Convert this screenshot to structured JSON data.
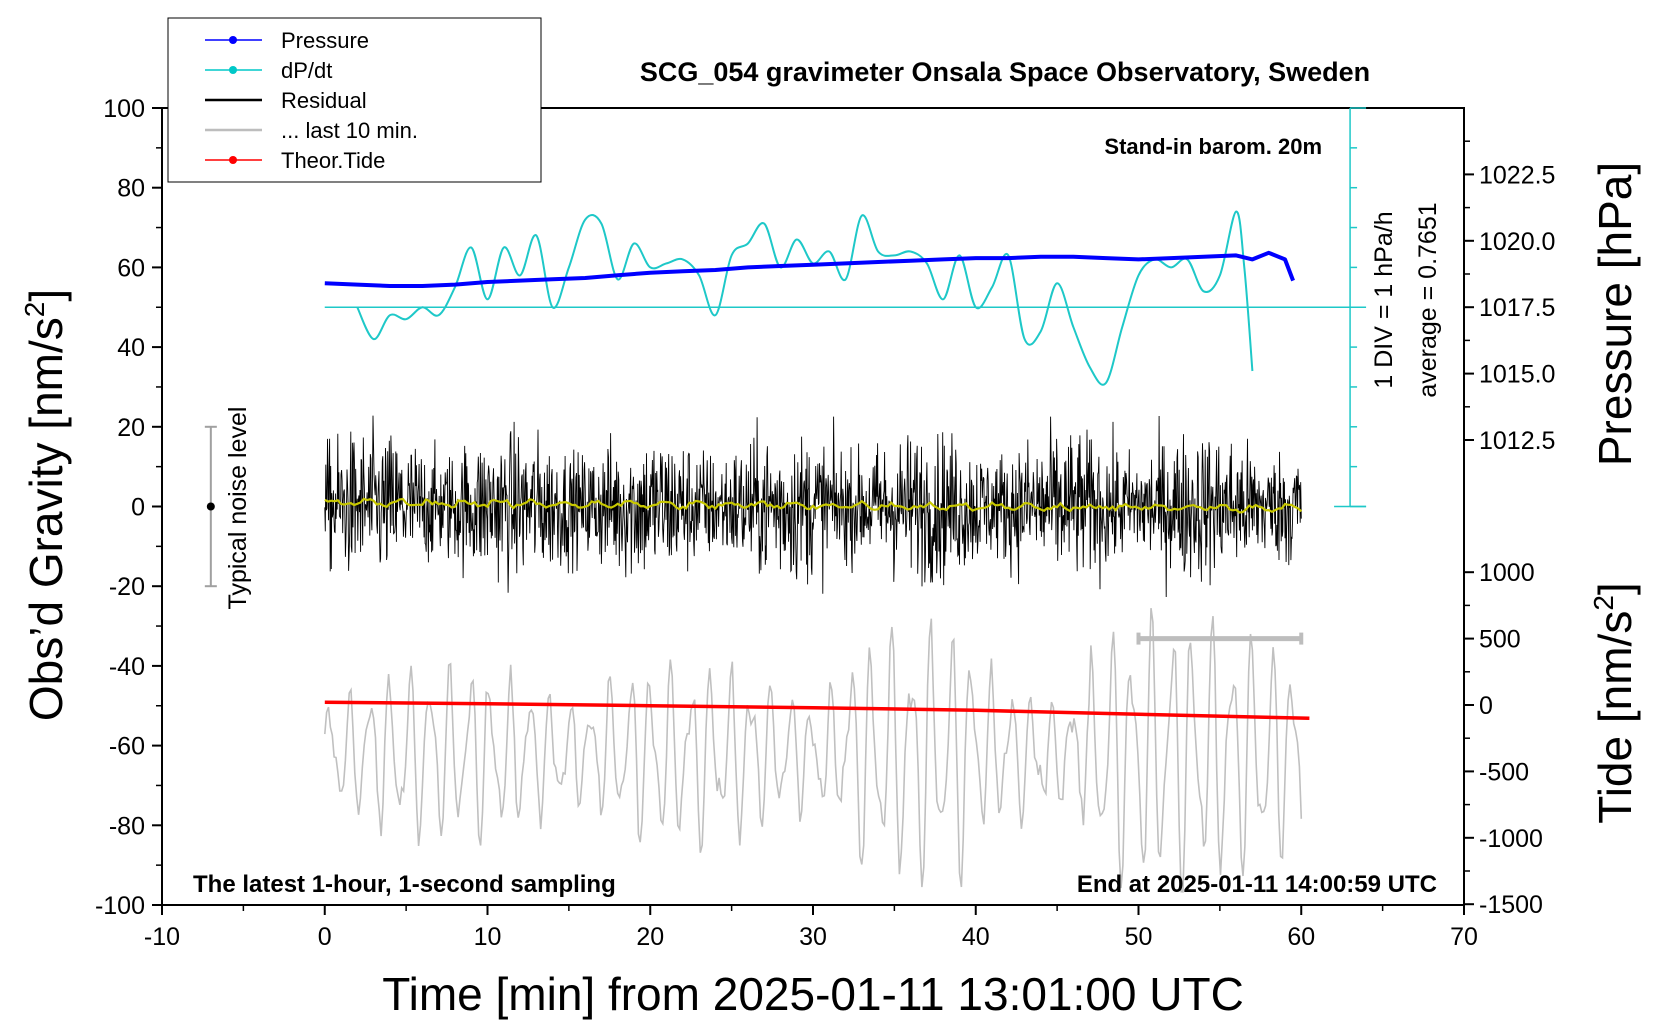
{
  "chart_data": {
    "type": "line",
    "title": "SCG_054 gravimeter Onsala Space Observatory, Sweden",
    "xlabel": "Time [min] from 2025-01-11 13:01:00 UTC",
    "ylabel_left": "Obs’d Gravity [nm/s",
    "ylabel_left_sup": "2",
    "ylabel_left_tail": "]",
    "ylabel_right_pressure": "Pressure [hPa]",
    "ylabel_right_tide": "Tide [nm/s",
    "ylabel_right_tide_sup": "2",
    "ylabel_right_tide_tail": "]",
    "xlim": [
      -10,
      70
    ],
    "ylim": [
      -100,
      100
    ],
    "pressure_lim": [
      1010,
      1025
    ],
    "tide_lim": [
      -1500,
      1500
    ],
    "x_ticks": [
      "-10",
      "0",
      "10",
      "20",
      "30",
      "40",
      "50",
      "60",
      "70"
    ],
    "y_ticks": [
      "100",
      "80",
      "60",
      "40",
      "20",
      "0",
      "-20",
      "-40",
      "-60",
      "-80",
      "-100"
    ],
    "pressure_ticks": [
      "1022.5",
      "1020.0",
      "1017.5",
      "1015.0",
      "1012.5"
    ],
    "tide_ticks": [
      "1000",
      "500",
      "0",
      "-500",
      "-1000",
      "-1500"
    ],
    "annotations": {
      "stand_in": "Stand-in barom. 20m",
      "latest": "The latest 1-hour, 1-second sampling",
      "end_at": "End at 2025-01-11 14:00:59 UTC",
      "div": "1 DIV = 1 hPa/h",
      "average": "average = 0.7651",
      "noise": "Typical noise level"
    },
    "legend": [
      {
        "label": "Pressure",
        "color": "#0000ff",
        "marker": true
      },
      {
        "label": "dP/dt",
        "color": "#00c8c8",
        "marker": true
      },
      {
        "label": "Residual",
        "color": "#000000",
        "marker": false
      },
      {
        "label": "... last 10 min.",
        "color": "#bdbdbd",
        "marker": false
      },
      {
        "label": "Theor.Tide",
        "color": "#ff0000",
        "marker": true
      }
    ],
    "colors": {
      "pressure": "#0000ff",
      "dpdt": "#1ec8c8",
      "residual": "#000000",
      "smoothed": "#c8c800",
      "last10": "#c0c0c0",
      "tide": "#ff0000"
    },
    "series": [
      {
        "name": "Pressure",
        "axis": "pressure",
        "x": [
          0,
          2,
          4,
          6,
          8,
          10,
          12,
          14,
          16,
          18,
          20,
          22,
          24,
          26,
          28,
          30,
          32,
          34,
          36,
          38,
          40,
          42,
          44,
          46,
          48,
          50,
          52,
          54,
          56,
          57,
          58,
          59,
          59.5
        ],
        "values": [
          1018.4,
          1018.35,
          1018.3,
          1018.3,
          1018.35,
          1018.45,
          1018.5,
          1018.55,
          1018.6,
          1018.7,
          1018.8,
          1018.85,
          1018.9,
          1019.0,
          1019.05,
          1019.1,
          1019.15,
          1019.2,
          1019.25,
          1019.3,
          1019.35,
          1019.35,
          1019.4,
          1019.4,
          1019.35,
          1019.3,
          1019.35,
          1019.4,
          1019.45,
          1019.3,
          1019.55,
          1019.3,
          1018.5
        ]
      },
      {
        "name": "dP/dt",
        "axis": "gravity",
        "x": [
          2,
          3,
          4,
          5,
          6,
          7,
          8,
          9,
          10,
          11,
          12,
          13,
          14,
          15,
          16,
          17,
          18,
          19,
          20,
          21,
          22,
          23,
          24,
          25,
          26,
          27,
          28,
          29,
          30,
          31,
          32,
          33,
          34,
          35,
          36,
          37,
          38,
          39,
          40,
          41,
          42,
          43,
          44,
          45,
          46,
          47,
          48,
          49,
          50,
          51,
          52,
          53,
          54,
          55,
          56,
          56.5,
          57
        ],
        "values": [
          50,
          42,
          48,
          47,
          50,
          48,
          55,
          65,
          52,
          65,
          58,
          68,
          50,
          60,
          72,
          71,
          57,
          66,
          60,
          61,
          62,
          58,
          48,
          63,
          66,
          71,
          60,
          67,
          61,
          64,
          57,
          73,
          64,
          63,
          64,
          61,
          52,
          63,
          50,
          55,
          63,
          42,
          44,
          56,
          45,
          35,
          31,
          45,
          58,
          62,
          60,
          62,
          54,
          58,
          74,
          60,
          34
        ]
      },
      {
        "name": "Residual",
        "axis": "gravity",
        "x_range": [
          0,
          60
        ],
        "amplitude": 22
      },
      {
        "name": "Residual smoothed",
        "axis": "gravity",
        "x_range": [
          0,
          60
        ],
        "values_mean": 0
      },
      {
        "name": "... last 10 min.",
        "axis": "gravity",
        "x_range": [
          0,
          60
        ],
        "center": -62,
        "amplitude": 25
      },
      {
        "name": "Theor.Tide",
        "axis": "tide",
        "x": [
          0,
          10,
          20,
          30,
          40,
          50,
          60.5
        ],
        "values": [
          20,
          10,
          -5,
          -20,
          -40,
          -70,
          -100
        ]
      }
    ],
    "noise_bar": {
      "x": -7,
      "low": -20,
      "high": 20,
      "center": 0
    },
    "last10_bracket": {
      "x_start": 50,
      "x_end": 60,
      "tide_value": 500
    },
    "dpdt_scale": {
      "zero": 0,
      "line": 50,
      "top": 100,
      "x": 63
    }
  }
}
